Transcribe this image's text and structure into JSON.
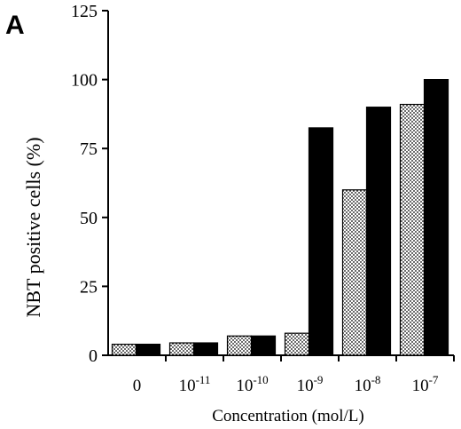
{
  "chart_data": {
    "type": "bar",
    "panel_label": "A",
    "xlabel": "Concentration (mol/L)",
    "ylabel": "NBT positive cells (%)",
    "ylim": [
      0,
      125
    ],
    "yticks": [
      "0",
      "25",
      "50",
      "75",
      "100",
      "125"
    ],
    "categories": [
      {
        "base": "0",
        "exp": ""
      },
      {
        "base": "10",
        "exp": "-11"
      },
      {
        "base": "10",
        "exp": "-10"
      },
      {
        "base": "10",
        "exp": "-9"
      },
      {
        "base": "10",
        "exp": "-8"
      },
      {
        "base": "10",
        "exp": "-7"
      }
    ],
    "series": [
      {
        "pattern": "dotted",
        "values": [
          4,
          4.5,
          7,
          8,
          60,
          91
        ]
      },
      {
        "pattern": "solid",
        "values": [
          4,
          4.5,
          7,
          82.5,
          90,
          100
        ]
      }
    ],
    "grid": false,
    "legend": false
  }
}
